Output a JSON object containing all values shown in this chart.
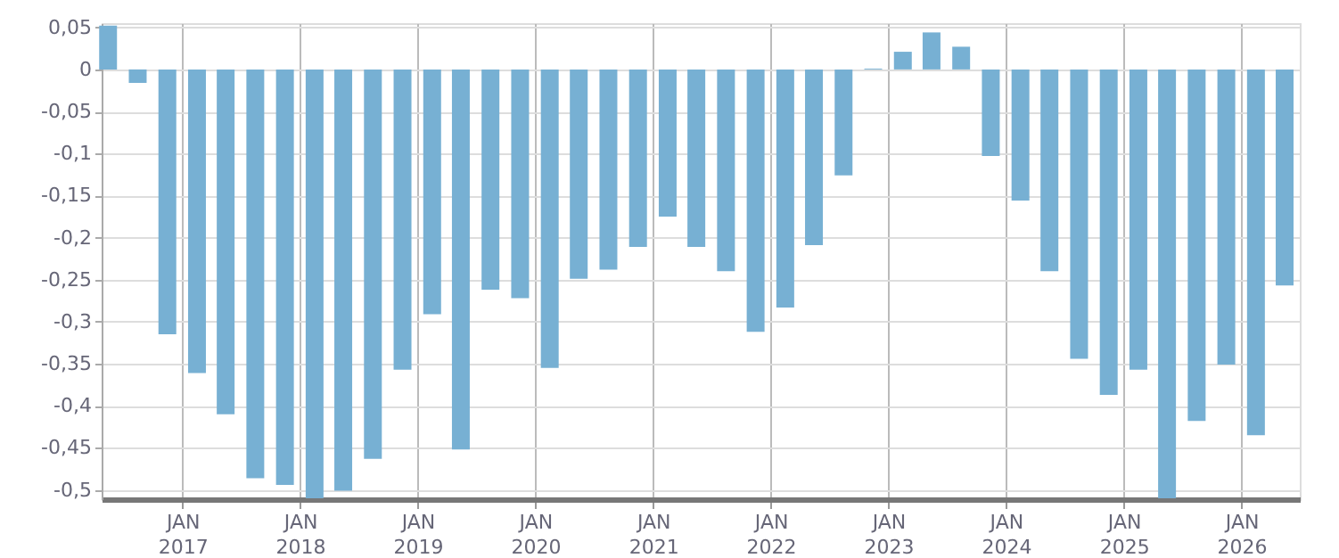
{
  "chart_data": {
    "type": "bar",
    "x": [
      "2016-05-15",
      "2016-08-15",
      "2016-11-15",
      "2017-02-15",
      "2017-05-15",
      "2017-08-15",
      "2017-11-15",
      "2018-02-15",
      "2018-05-15",
      "2018-08-15",
      "2018-11-15",
      "2019-02-15",
      "2019-05-15",
      "2019-08-15",
      "2019-11-15",
      "2020-02-15",
      "2020-05-15",
      "2020-08-15",
      "2020-11-15",
      "2021-02-15",
      "2021-05-15",
      "2021-08-15",
      "2021-11-15",
      "2022-02-15",
      "2022-05-15",
      "2022-08-15",
      "2022-11-15",
      "2023-02-15",
      "2023-05-15",
      "2023-08-15",
      "2023-11-15",
      "2024-02-15",
      "2024-05-15",
      "2024-08-15",
      "2024-11-15",
      "2025-02-15",
      "2025-05-15",
      "2025-08-15",
      "2025-11-15",
      "2026-02-15",
      "2026-05-15"
    ],
    "series": [
      {
        "color": "#77b0d3",
        "values": [
          0.052,
          -0.016,
          -0.315,
          -0.361,
          -0.41,
          -0.486,
          -0.494,
          -0.51,
          -0.501,
          -0.463,
          -0.357,
          -0.291,
          -0.452,
          -0.262,
          -0.272,
          -0.355,
          -0.249,
          -0.238,
          -0.211,
          -0.175,
          -0.211,
          -0.24,
          -0.312,
          -0.283,
          -0.209,
          -0.126,
          0.001,
          0.021,
          0.044,
          0.027,
          -0.103,
          -0.156,
          -0.24,
          -0.344,
          -0.387,
          -0.357,
          -0.51,
          -0.418,
          -0.351,
          -0.435,
          -0.257
        ]
      }
    ],
    "xlim": [
      "2016-04-25",
      "2026-07-01"
    ],
    "xticks": [
      {
        "value": "2017-01-01",
        "label": "JAN 2017"
      },
      {
        "value": "2018-01-01",
        "label": "JAN 2018"
      },
      {
        "value": "2019-01-01",
        "label": "JAN 2019"
      },
      {
        "value": "2020-01-01",
        "label": "JAN 2020"
      },
      {
        "value": "2021-01-01",
        "label": "JAN 2021"
      },
      {
        "value": "2022-01-01",
        "label": "JAN 2022"
      },
      {
        "value": "2023-01-01",
        "label": "JAN 2023"
      },
      {
        "value": "2024-01-01",
        "label": "JAN 2024"
      },
      {
        "value": "2025-01-01",
        "label": "JAN 2025"
      },
      {
        "value": "2026-01-01",
        "label": "JAN 2026"
      }
    ],
    "ylim": [
      -0.511,
      0.055
    ],
    "yticks": [
      {
        "value": 0.05,
        "label": "0,05"
      },
      0,
      {
        "value": -0.05,
        "label": "-0,05"
      },
      {
        "value": -0.1,
        "label": "-0,1"
      },
      {
        "value": -0.15,
        "label": "-0,15"
      },
      {
        "value": -0.2,
        "label": "-0,2"
      },
      {
        "value": -0.25,
        "label": "-0,25"
      },
      {
        "value": -0.3,
        "label": "-0,3"
      },
      {
        "value": -0.35,
        "label": "-0,35"
      },
      {
        "value": -0.4,
        "label": "-0,4"
      },
      {
        "value": -0.45,
        "label": "-0,45"
      },
      {
        "value": -0.5,
        "label": "-0,5"
      }
    ],
    "grid": true
  }
}
